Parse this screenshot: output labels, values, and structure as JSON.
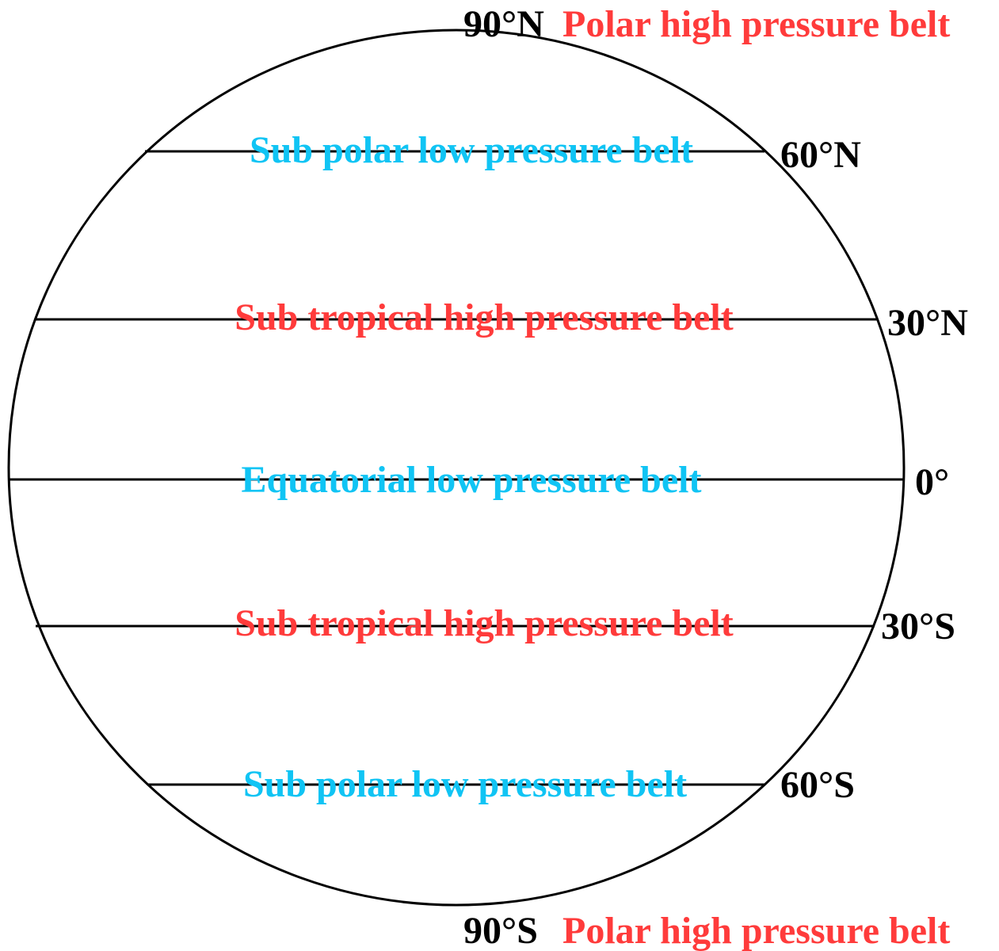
{
  "north_pole": {
    "latitude": "90°N",
    "belt": "Polar high pressure belt"
  },
  "belts": [
    {
      "latitude": "60°N",
      "belt": "Sub polar low pressure belt"
    },
    {
      "latitude": "30°N",
      "belt": "Sub tropical high pressure belt"
    },
    {
      "latitude": "0°",
      "belt": "Equatorial low pressure belt"
    },
    {
      "latitude": "30°S",
      "belt": "Sub tropical high pressure belt"
    },
    {
      "latitude": "60°S",
      "belt": "Sub polar low pressure belt"
    }
  ],
  "south_pole": {
    "latitude": "90°S",
    "belt": "Polar high pressure belt"
  }
}
